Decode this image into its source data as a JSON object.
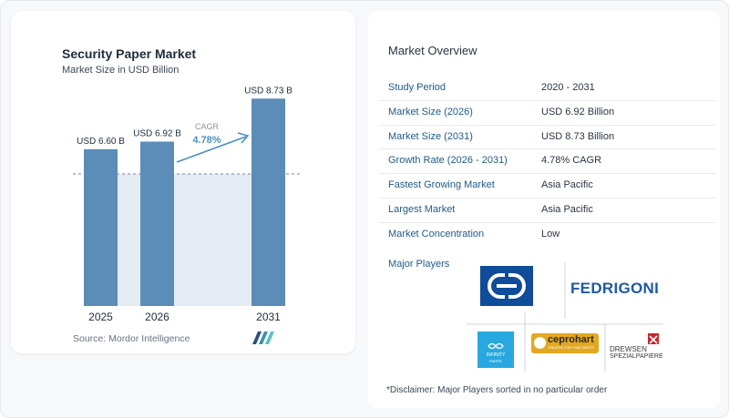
{
  "chart_card": {
    "title": "Security Paper Market",
    "subtitle": "Market Size in USD Billion",
    "source": "Source:  Mordor Intelligence",
    "cagr_label": "CAGR",
    "cagr_value": "4.78%"
  },
  "chart_data": {
    "type": "bar",
    "categories": [
      "2025",
      "2026",
      "2031"
    ],
    "values": [
      6.6,
      6.92,
      8.73
    ],
    "data_labels": [
      "USD 6.60 B",
      "USD 6.92 B",
      "USD 8.73 B"
    ],
    "title": "Security Paper Market",
    "subtitle": "Market Size in USD Billion",
    "xlabel": "",
    "ylabel": "",
    "ylim": [
      0,
      9.2
    ],
    "annotations": [
      "CAGR",
      "4.78%"
    ],
    "grid": false
  },
  "overview": {
    "title": "Market Overview",
    "rows": [
      {
        "key": "Study Period",
        "value": "2020 - 2031"
      },
      {
        "key": "Market Size (2026)",
        "value": "USD 6.92 Billion"
      },
      {
        "key": "Market Size (2031)",
        "value": "USD 8.73 Billion"
      },
      {
        "key": "Growth Rate (2026 - 2031)",
        "value": "4.78% CAGR"
      },
      {
        "key": "Fastest Growing Market",
        "value": "Asia Pacific"
      },
      {
        "key": "Largest Market",
        "value": "Asia Pacific"
      },
      {
        "key": "Market Concentration",
        "value": "Low"
      }
    ]
  },
  "players": {
    "label": "Major Players",
    "logos": {
      "fedrigoni": "FEDRIGONI",
      "infinity": "INFINITY",
      "infinity_sub": "PAPER",
      "ceprohart": "ceprohart",
      "ceprohart_sub": "CREATIVE FOR YOUR SAFETY",
      "drewsen_1": "DREWSEN",
      "drewsen_2": "SPEZIALPAPIERE"
    }
  },
  "disclaimer": "*Disclaimer: Major Players sorted in no particular order",
  "colors": {
    "bar": "#5b8db8",
    "bar_light": "#e4ebf3",
    "accent": "#4a90c2",
    "key_text": "#1e5a8a"
  }
}
